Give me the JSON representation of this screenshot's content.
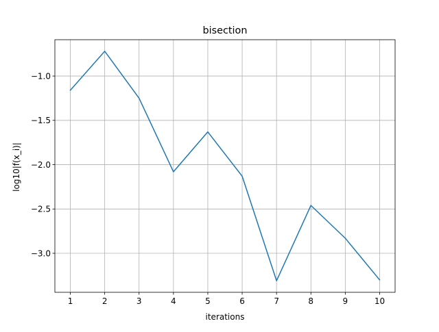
{
  "chart_data": {
    "type": "line",
    "title": "bisection",
    "xlabel": "iterations",
    "ylabel": "log10|f(x_i)|",
    "x": [
      1,
      2,
      3,
      4,
      5,
      6,
      7,
      8,
      9,
      10
    ],
    "series": [
      {
        "values": [
          -1.16,
          -0.72,
          -1.25,
          -2.08,
          -1.63,
          -2.13,
          -3.31,
          -2.46,
          -2.83,
          -3.3
        ],
        "color": "#1f77b4"
      }
    ],
    "xticks": [
      "1",
      "2",
      "3",
      "4",
      "5",
      "6",
      "7",
      "8",
      "9",
      "10"
    ],
    "yticks": [
      -1.0,
      -1.5,
      -2.0,
      -2.5,
      -3.0
    ],
    "ytick_labels": [
      "−1.0",
      "−1.5",
      "−2.0",
      "−2.5",
      "−3.0"
    ],
    "xlim": [
      0.55,
      10.45
    ],
    "ylim": [
      -3.44,
      -0.59
    ],
    "grid": true
  }
}
